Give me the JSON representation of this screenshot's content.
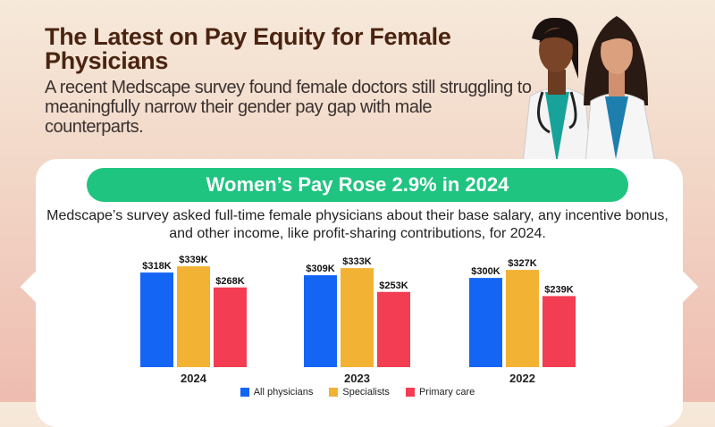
{
  "header": {
    "title": "The Latest on Pay Equity for Female Physicians",
    "subtitle": "A recent Medscape survey found female doctors still struggling to meaningfully narrow their gender pay gap with male counterparts."
  },
  "card": {
    "banner": "Women’s Pay Rose 2.9% in 2024",
    "description": "Medscape’s survey asked full-time female physicians about their base salary, any incentive bonus, and other income, like profit-sharing contributions, for 2024."
  },
  "chart_data": {
    "type": "bar",
    "categories": [
      "2024",
      "2023",
      "2022"
    ],
    "series": [
      {
        "name": "All physicians",
        "color": "#1565f5",
        "values": [
          318,
          309,
          300
        ],
        "labels": [
          "$318K",
          "$309K",
          "$300K"
        ]
      },
      {
        "name": "Specialists",
        "color": "#f2b233",
        "values": [
          339,
          333,
          327
        ],
        "labels": [
          "$339K",
          "$333K",
          "$327K"
        ]
      },
      {
        "name": "Primary care",
        "color": "#f23d52",
        "values": [
          268,
          253,
          239
        ],
        "labels": [
          "$268K",
          "$253K",
          "$239K"
        ]
      }
    ],
    "unit": "thousand USD",
    "grid": false,
    "legend_placement": "bottom"
  },
  "colors": {
    "banner": "#1fc480",
    "title": "#4a2410"
  }
}
